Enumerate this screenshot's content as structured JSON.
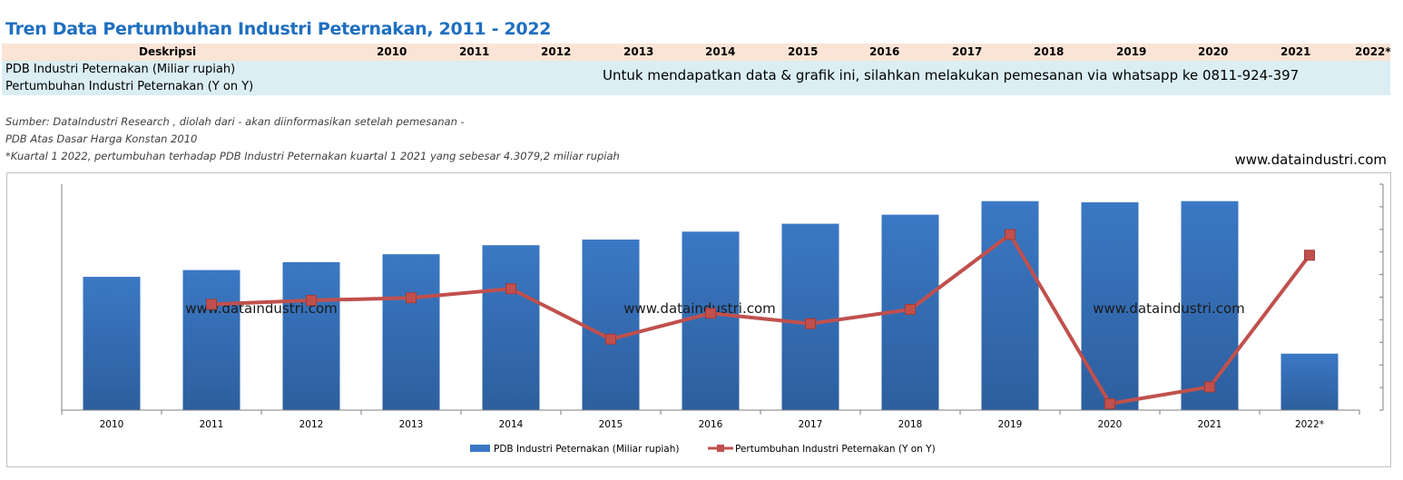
{
  "title": "Tren Data Pertumbuhan Industri Peternakan, 2011 - 2022",
  "table": {
    "desc_header": "Deskripsi",
    "years": [
      "2010",
      "2011",
      "2012",
      "2013",
      "2014",
      "2015",
      "2016",
      "2017",
      "2018",
      "2019",
      "2020",
      "2021",
      "2022*"
    ],
    "rows": [
      "PDB Industri Peternakan (Miliar rupiah)",
      "Pertumbuhan Industri Peternakan (Y on Y)"
    ],
    "order_note": "Untuk mendapatkan data & grafik ini, silahkan melakukan pemesanan via whatsapp ke 0811-924-397"
  },
  "source": {
    "line1": "Sumber: DataIndustri Research , diolah dari - akan diinformasikan setelah pemesanan -",
    "line2": "PDB Atas Dasar Harga Konstan 2010",
    "line3": "*Kuartal 1 2022, pertumbuhan terhadap PDB Industri Peternakan kuartal 1 2021 yang sebesar 4.3079,2 miliar rupiah"
  },
  "website": "www.dataindustri.com",
  "watermarks": [
    "www.dataindustri.com",
    "www.dataindustri.com",
    "www.dataindustri.com"
  ],
  "colors": {
    "bar": "#3b78c4",
    "bar_dark": "#2d5f9e",
    "line": "#c0504d",
    "title": "#1f6fc0",
    "header_bg": "#fbe4d5",
    "row_bg": "#daeef3"
  },
  "chart_data": {
    "type": "bar",
    "title": "",
    "categories": [
      "2010",
      "2011",
      "2012",
      "2013",
      "2014",
      "2015",
      "2016",
      "2017",
      "2018",
      "2019",
      "2020",
      "2021",
      "2022*"
    ],
    "series": [
      {
        "name": "PDB Industri Peternakan (Miliar rupiah)",
        "type": "bar",
        "axis": "left",
        "values": [
          59,
          62,
          65.5,
          69,
          73,
          75.5,
          79,
          82.5,
          86.5,
          92.5,
          92,
          92.5,
          25
        ]
      },
      {
        "name": "Pertumbuhan Industri Peternakan (Y on Y)",
        "type": "line",
        "axis": "right",
        "values": [
          null,
          5.7,
          6.0,
          6.2,
          6.9,
          3.0,
          5.0,
          4.2,
          5.3,
          11.1,
          -2.0,
          -0.7,
          9.5
        ]
      }
    ],
    "ylim_left": [
      0,
      100
    ],
    "ylim_right": [
      -2.5,
      15
    ],
    "xlabel": "",
    "ylabel": "",
    "grid": false,
    "legend_position": "bottom"
  }
}
